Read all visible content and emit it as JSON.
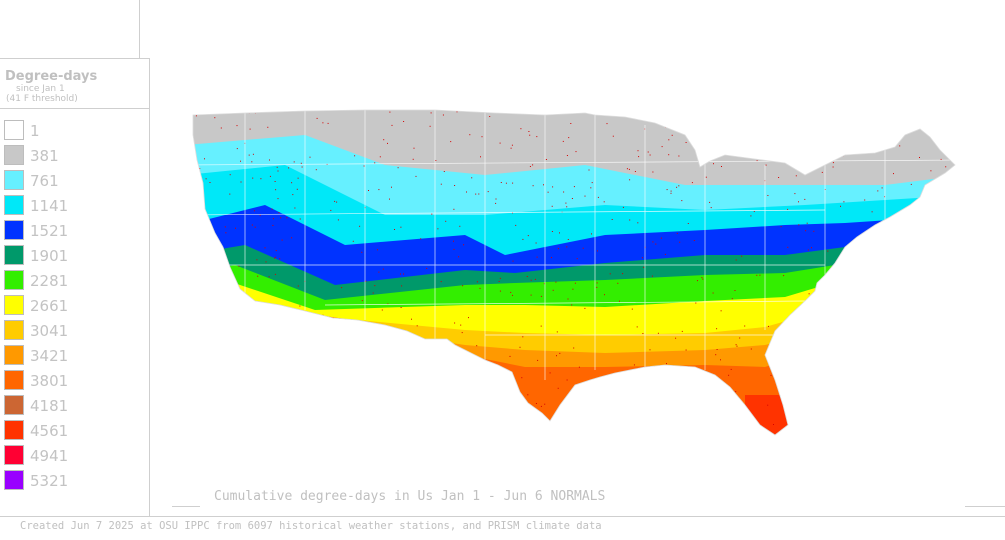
{
  "legend": {
    "title": "Degree-days",
    "subtitle_line1": "since Jan 1",
    "subtitle_line2": "(41 F threshold)",
    "items": [
      {
        "value": "1",
        "color": "#ffffff"
      },
      {
        "value": "381",
        "color": "#c8c8c8"
      },
      {
        "value": "761",
        "color": "#66f0ff"
      },
      {
        "value": "1141",
        "color": "#00e8f8"
      },
      {
        "value": "1521",
        "color": "#0033ff"
      },
      {
        "value": "1901",
        "color": "#00996a"
      },
      {
        "value": "2281",
        "color": "#33ee00"
      },
      {
        "value": "2661",
        "color": "#ffff00"
      },
      {
        "value": "3041",
        "color": "#ffcc00"
      },
      {
        "value": "3421",
        "color": "#ff9900"
      },
      {
        "value": "3801",
        "color": "#ff6600"
      },
      {
        "value": "4181",
        "color": "#cc6633"
      },
      {
        "value": "4561",
        "color": "#ff3300"
      },
      {
        "value": "4941",
        "color": "#ff0033"
      },
      {
        "value": "5321",
        "color": "#9900ff"
      }
    ]
  },
  "map": {
    "label": "Cumulative degree-days in Us  Jan 1 - Jun 6 NORMALS",
    "region": "contiguous-us",
    "zone_colors": {
      "north": "#c8c8c8",
      "north_mid": "#66f0ff",
      "mid": "#00e8f8",
      "central": "#0033ff",
      "transition": "#00996a",
      "south_mid": "#33ee00",
      "south": "#ffff00",
      "gulf1": "#ffcc00",
      "gulf2": "#ff9900",
      "gulf3": "#ff6600",
      "tip": "#ff3300",
      "station_dots": "#d40000",
      "state_lines": "#ffffff"
    }
  },
  "footer": "Created Jun 7 2025 at OSU IPPC from 6097 historical weather stations, and PRISM climate data"
}
